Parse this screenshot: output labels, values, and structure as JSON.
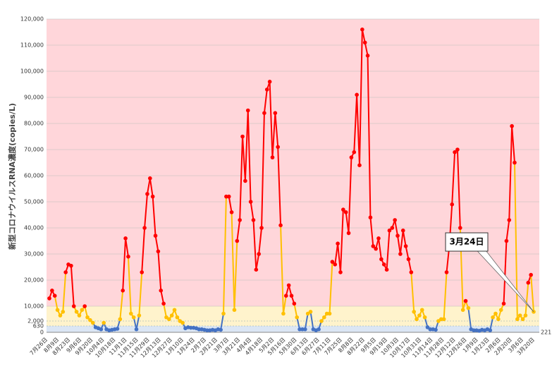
{
  "chart_data": {
    "type": "line",
    "y_label": "新型コロナウイルスRNA濃度(copies/L)",
    "ylim": [
      0,
      120000
    ],
    "yticks": [
      0,
      630,
      {
        "value": 2000,
        "label": "2,000"
      },
      {
        "value": 10000,
        "label": "10,000"
      },
      {
        "value": 20000,
        "label": "20,000"
      },
      {
        "value": 30000,
        "label": "30,000"
      },
      {
        "value": 40000,
        "label": "40,000"
      },
      {
        "value": 50000,
        "label": "50,000"
      },
      {
        "value": 60000,
        "label": "60,000"
      },
      {
        "value": 70000,
        "label": "70,000"
      },
      {
        "value": 80000,
        "label": "80,000"
      },
      {
        "value": 90000,
        "label": "90,000"
      },
      {
        "value": 100000,
        "label": "100,000"
      },
      {
        "value": 110000,
        "label": "110,000"
      },
      {
        "value": 120000,
        "label": "120,000"
      }
    ],
    "x_labels": [
      "7月26日",
      "8月9日",
      "8月23日",
      "9月6日",
      "9月20日",
      "10月4日",
      "10月18日",
      "11月1日",
      "11月15日",
      "11月29日",
      "12月13日",
      "12月27日",
      "1月10日",
      "1月24日",
      "2月7日",
      "2月21日",
      "3月7日",
      "3月21日",
      "4月4日",
      "4月18日",
      "5月2日",
      "5月16日",
      "5月30日",
      "6月13日",
      "6月27日",
      "7月11日",
      "7月25日",
      "8月8日",
      "8月22日",
      "9月5日",
      "9月19日",
      "10月3日",
      "10月17日",
      "10月31日",
      "11月14日",
      "11月28日",
      "12月12日",
      "12月26日",
      "1月9日",
      "1月23日",
      "2月6日",
      "2月20日",
      "3月6日",
      "3月20日"
    ],
    "values": [
      13000,
      16000,
      14000,
      8000,
      5000,
      7000,
      23000,
      26000,
      25500,
      10000,
      7000,
      5000,
      8000,
      10000,
      4000,
      2500,
      1500,
      500,
      400,
      300,
      1500,
      300,
      200,
      250,
      300,
      350,
      3000,
      16000,
      36000,
      29000,
      6000,
      4000,
      300,
      5000,
      23000,
      40000,
      53000,
      59000,
      52000,
      37000,
      31000,
      16000,
      11000,
      4000,
      3000,
      5000,
      8000,
      4000,
      2000,
      1500,
      400,
      500,
      450,
      450,
      400,
      300,
      300,
      250,
      200,
      200,
      250,
      200,
      300,
      250,
      6000,
      52000,
      52000,
      46000,
      8000,
      35000,
      43000,
      75000,
      58000,
      85000,
      50000,
      43000,
      24000,
      30000,
      40000,
      84000,
      93000,
      96000,
      67000,
      84000,
      71000,
      41000,
      6000,
      14000,
      18000,
      14000,
      11000,
      4000,
      300,
      300,
      300,
      6000,
      7000,
      300,
      200,
      300,
      2000,
      4000,
      6000,
      6000,
      27000,
      26000,
      34000,
      23000,
      47000,
      46000,
      38000,
      67000,
      69000,
      91000,
      64000,
      116000,
      111000,
      106000,
      44000,
      33000,
      32000,
      36000,
      28000,
      26000,
      24000,
      39000,
      40000,
      43000,
      37000,
      30000,
      39000,
      33000,
      28000,
      23000,
      7000,
      3000,
      5000,
      8000,
      4000,
      500,
      300,
      300,
      250,
      2000,
      3000,
      3000,
      23000,
      33000,
      49000,
      69000,
      70000,
      40000,
      8000,
      12000,
      9000,
      300,
      200,
      200,
      150,
      250,
      200,
      300,
      200,
      4000,
      6000,
      3000,
      8000,
      11000,
      35000,
      43000,
      79000,
      65000,
      3000,
      5000,
      3000,
      5000,
      19000,
      22000,
      7000
    ],
    "level_colors": [
      "#4472c4",
      "#ffc000",
      "#ff0000"
    ],
    "band_colors": [
      "#dbe6f4",
      "#fff3cc",
      "#ffd6da"
    ],
    "grid": true,
    "annotations": [
      {
        "text": "3月24日"
      },
      {
        "text": "221"
      }
    ]
  }
}
